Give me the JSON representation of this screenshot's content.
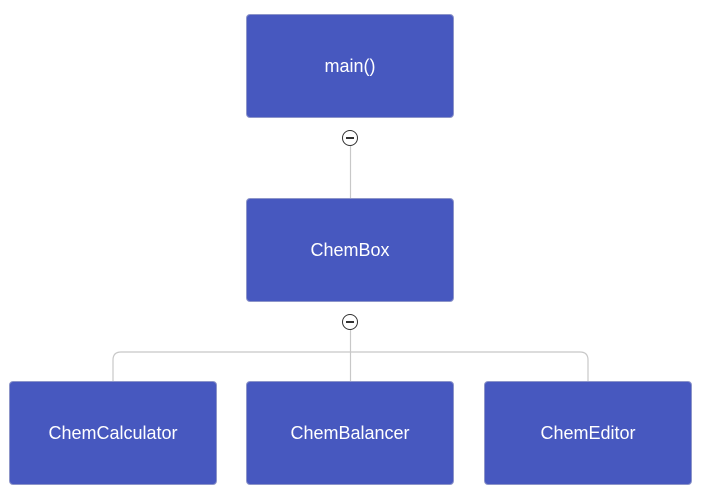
{
  "tree": {
    "root": {
      "label": "main()"
    },
    "middle": {
      "label": "ChemBox"
    },
    "children": [
      {
        "label": "ChemCalculator"
      },
      {
        "label": "ChemBalancer"
      },
      {
        "label": "ChemEditor"
      }
    ]
  },
  "colors": {
    "node_fill": "#4758bf",
    "node_text": "#ffffff",
    "connector": "#c8c8c8",
    "toggle_border": "#333333"
  },
  "icons": {
    "collapse": "minus-circle-icon"
  }
}
